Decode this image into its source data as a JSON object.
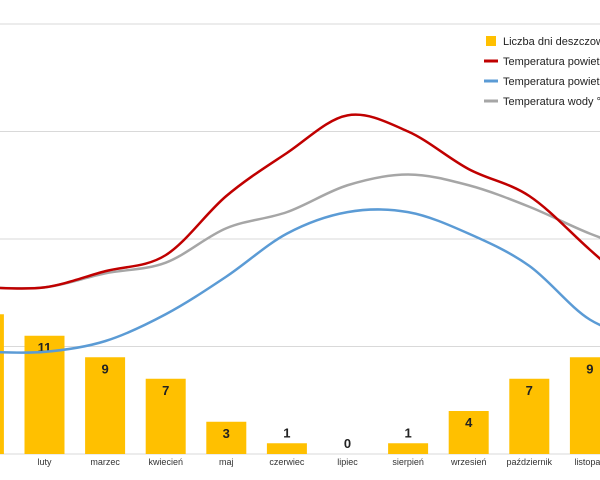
{
  "chart_data": {
    "type": "bar",
    "categories": [
      "luty",
      "marzec",
      "kwiecień",
      "maj",
      "czerwiec",
      "lipiec",
      "sierpień",
      "wrzesień",
      "październik",
      "listopad"
    ],
    "first_category_label_cut": "",
    "series": [
      {
        "name": "Liczba dni deszczowy",
        "kind": "bar",
        "color": "#FFC000",
        "partial_leading_value": 13,
        "values": [
          11,
          9,
          7,
          3,
          1,
          0,
          1,
          4,
          7,
          9
        ]
      },
      {
        "name": "Temperatura powietr",
        "kind": "line",
        "color": "#C00000",
        "partial_leading_value": 15.5,
        "values": [
          15.5,
          17.0,
          18.5,
          24.0,
          28.0,
          31.5,
          30.0,
          26.5,
          24.0,
          19.0
        ]
      },
      {
        "name": "Temperatura powietr",
        "kind": "line",
        "color": "#5B9BD5",
        "partial_leading_value": 9.5,
        "values": [
          9.5,
          10.5,
          13.0,
          16.5,
          20.5,
          22.5,
          22.5,
          20.5,
          17.5,
          12.5
        ]
      },
      {
        "name": "Temperatura wody °",
        "kind": "line",
        "color": "#A6A6A6",
        "partial_leading_value": 15.5,
        "values": [
          15.5,
          16.8,
          17.8,
          21.0,
          22.5,
          25.0,
          26.0,
          25.0,
          23.0,
          20.5
        ]
      }
    ],
    "trailing_line_values": [
      14.0,
      10.5,
      18.5
    ],
    "ylim": [
      0,
      40
    ],
    "grid": true,
    "legend_position": "top-right",
    "title": "",
    "xlabel": "",
    "ylabel": ""
  }
}
